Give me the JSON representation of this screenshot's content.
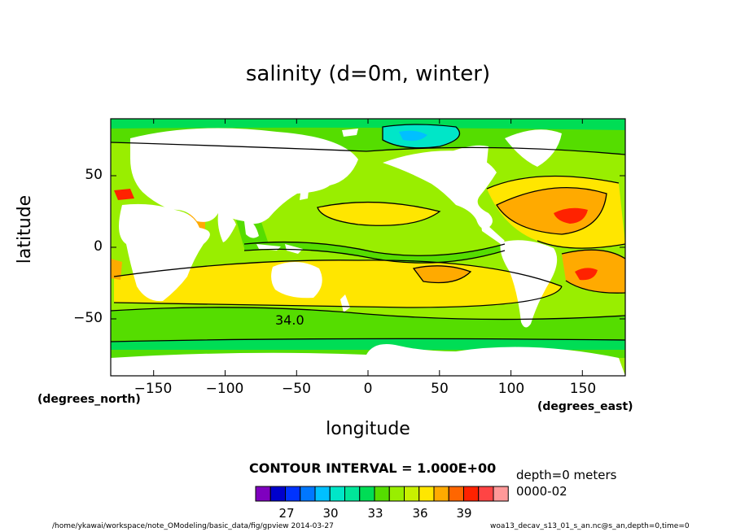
{
  "title": "salinity (d=0m, winter)",
  "x_axis": {
    "label": "longitude",
    "unit": "(degrees_east)",
    "ticks": [
      "−150",
      "−100",
      "−50",
      "0",
      "50",
      "100",
      "150"
    ],
    "range": [
      -180,
      180
    ]
  },
  "y_axis": {
    "label": "latitude",
    "unit": "(degrees_north)",
    "ticks": [
      "50",
      "0",
      "−50"
    ],
    "range": [
      -90,
      90
    ]
  },
  "contour_label": "34.0",
  "contour_interval": "CONTOUR INTERVAL = 1.000E+00",
  "depth_text": "depth=0 meters",
  "time_text": "0000-02",
  "legend": {
    "colors": [
      "#7f00bf",
      "#0000cc",
      "#0033ff",
      "#0077ff",
      "#00c0ff",
      "#00e6c8",
      "#00e69a",
      "#00dd55",
      "#55dd00",
      "#99ee00",
      "#c8f000",
      "#ffe600",
      "#ffaa00",
      "#ff6600",
      "#ff2200",
      "#ff4444",
      "#ff9999"
    ],
    "ticks": [
      "27",
      "30",
      "33",
      "36",
      "39"
    ]
  },
  "footer_left": "/home/ykawai/workspace/note_OModeling/basic_data/fig/gpview   2014-03-27",
  "footer_right": "woa13_decav_s13_01_s_an.nc@s_an,depth=0,time=0",
  "colors": {
    "ocean_base": "#99ee00",
    "land": "#ffffff",
    "contour": "#000000"
  }
}
